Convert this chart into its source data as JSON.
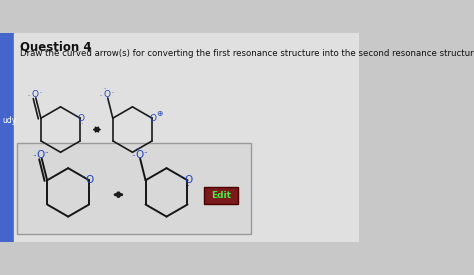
{
  "title": "Question 4",
  "subtitle": "Draw the curved arrow(s) for converting the first resonance structure into the second resonance structure.",
  "bg_color": "#c8c8c8",
  "page_color": "#e0e0e0",
  "box_bg": "#dcdcdc",
  "text_color": "#111111",
  "blue_color": "#2244bb",
  "dark_color": "#1a1a1a",
  "edit_bg": "#7a1a1a",
  "edit_text": "#44ee44",
  "left_bar_color": "#4466cc",
  "title_fontsize": 8.5,
  "subtitle_fontsize": 6.2,
  "study_label": "udy"
}
